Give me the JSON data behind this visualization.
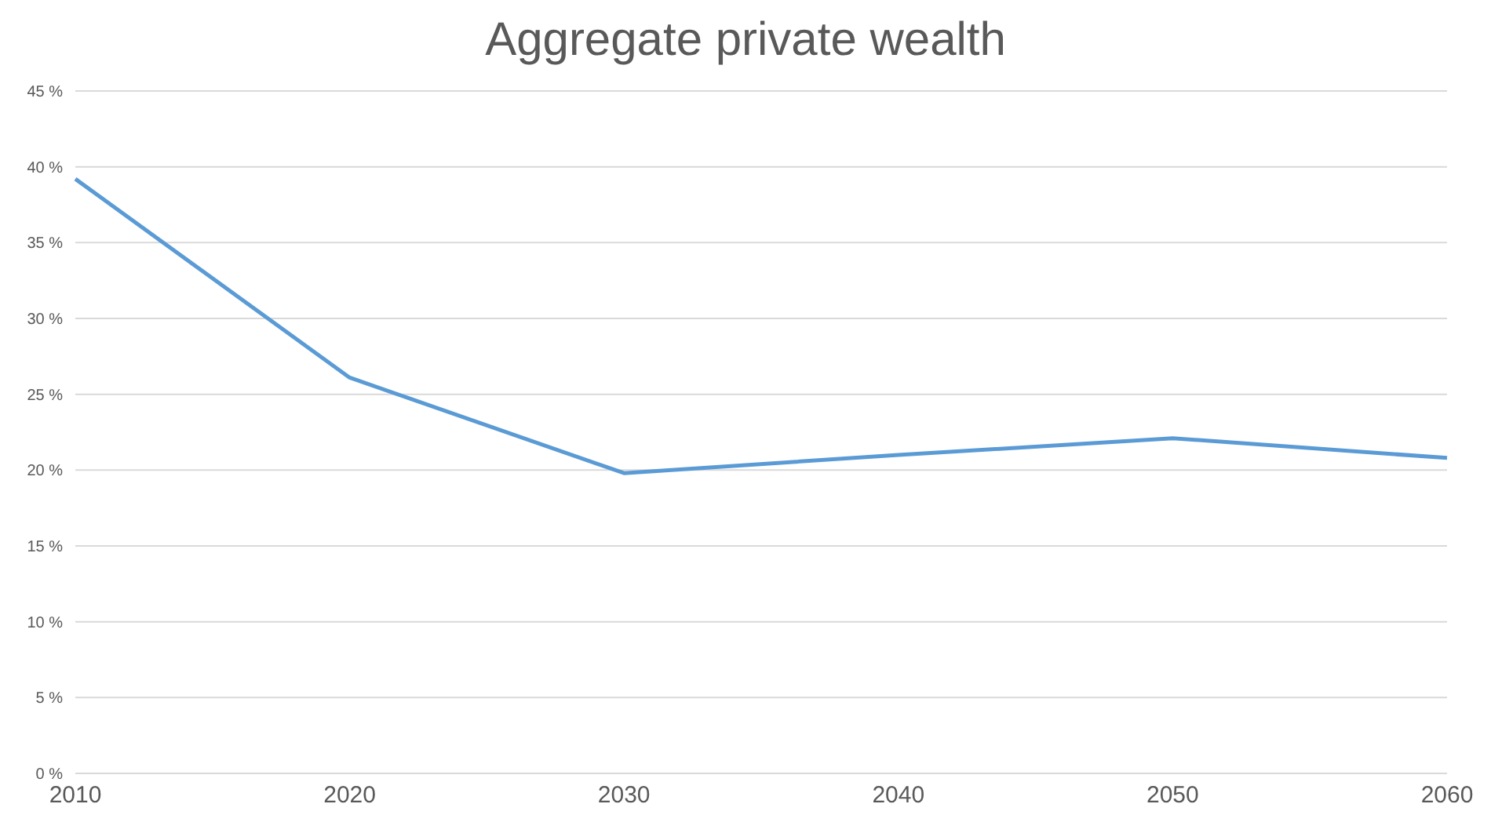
{
  "chart_data": {
    "type": "line",
    "title": "Aggregate private wealth",
    "categories": [
      "2010",
      "2020",
      "2030",
      "2040",
      "2050",
      "2060"
    ],
    "series": [
      {
        "color": "#5b9bd5",
        "values": [
          39.2,
          26.1,
          19.8,
          21.0,
          22.1,
          20.8
        ]
      }
    ],
    "ylim": [
      0,
      45
    ],
    "yticks": [
      {
        "value": 0,
        "label": "0 %"
      },
      {
        "value": 5,
        "label": "5 %"
      },
      {
        "value": 10,
        "label": "10 %"
      },
      {
        "value": 15,
        "label": "15 %"
      },
      {
        "value": 20,
        "label": "20 %"
      },
      {
        "value": 25,
        "label": "25 %"
      },
      {
        "value": 30,
        "label": "30 %"
      },
      {
        "value": 35,
        "label": "35 %"
      },
      {
        "value": 40,
        "label": "40 %"
      },
      {
        "value": 45,
        "label": "45 %"
      }
    ],
    "grid": "y",
    "marker": "none",
    "line_style": "solid"
  }
}
